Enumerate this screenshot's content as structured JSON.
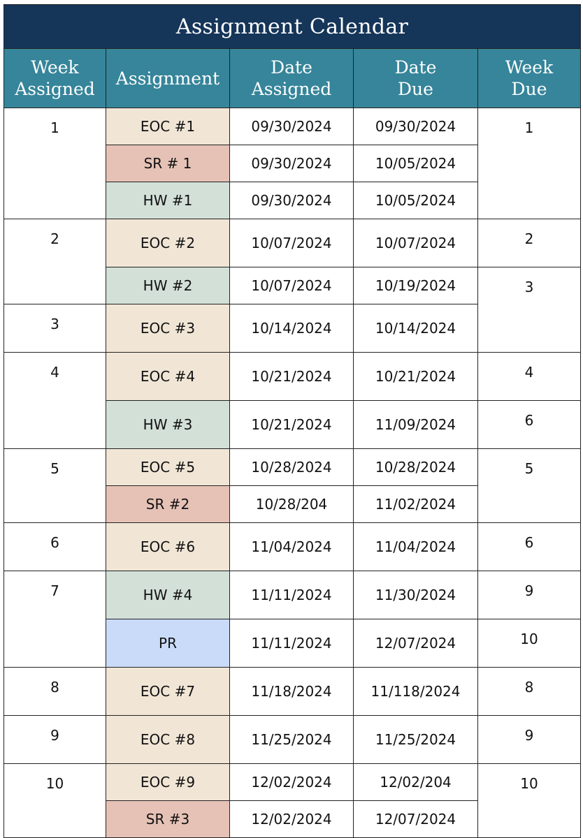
{
  "title": "Assignment Calendar",
  "headers": {
    "week_assigned": [
      "Week",
      "Assigned"
    ],
    "assignment": [
      "Assignment"
    ],
    "date_assigned": [
      "Date",
      "Assigned"
    ],
    "date_due": [
      "Date",
      "Due"
    ],
    "week_due": [
      "Week",
      "Due"
    ]
  },
  "colors": {
    "title_bg": "#153559",
    "header_bg": "#36859a",
    "EOC": "#f1e6d6",
    "SR": "#e6c2b6",
    "HW": "#d3e0d8",
    "PR": "#c9dbf8"
  },
  "rows": [
    {
      "week_assigned": "1",
      "assignment": "EOC #1",
      "type": "EOC",
      "date_assigned": "09/30/2024",
      "date_due": "09/30/2024",
      "week_due": "1"
    },
    {
      "week_assigned": "",
      "assignment": "SR # 1",
      "type": "SR",
      "date_assigned": "09/30/2024",
      "date_due": "10/05/2024",
      "week_due": ""
    },
    {
      "week_assigned": "",
      "assignment": "HW #1",
      "type": "HW",
      "date_assigned": "09/30/2024",
      "date_due": "10/05/2024",
      "week_due": ""
    },
    {
      "week_assigned": "2",
      "assignment": "EOC #2",
      "type": "EOC",
      "date_assigned": "10/07/2024",
      "date_due": "10/07/2024",
      "week_due": "2"
    },
    {
      "week_assigned": "",
      "assignment": "HW #2",
      "type": "HW",
      "date_assigned": "10/07/2024",
      "date_due": "10/19/2024",
      "week_due": "3"
    },
    {
      "week_assigned": "3",
      "assignment": "EOC #3",
      "type": "EOC",
      "date_assigned": "10/14/2024",
      "date_due": "10/14/2024",
      "week_due": ""
    },
    {
      "week_assigned": "4",
      "assignment": "EOC #4",
      "type": "EOC",
      "date_assigned": "10/21/2024",
      "date_due": "10/21/2024",
      "week_due": "4"
    },
    {
      "week_assigned": "",
      "assignment": "HW #3",
      "type": "HW",
      "date_assigned": "10/21/2024",
      "date_due": "11/09/2024",
      "week_due": "6"
    },
    {
      "week_assigned": "5",
      "assignment": "EOC #5",
      "type": "EOC",
      "date_assigned": "10/28/2024",
      "date_due": "10/28/2024",
      "week_due": "5"
    },
    {
      "week_assigned": "",
      "assignment": "SR #2",
      "type": "SR",
      "date_assigned": "10/28/204",
      "date_due": "11/02/2024",
      "week_due": ""
    },
    {
      "week_assigned": "6",
      "assignment": "EOC #6",
      "type": "EOC",
      "date_assigned": "11/04/2024",
      "date_due": "11/04/2024",
      "week_due": "6"
    },
    {
      "week_assigned": "7",
      "assignment": "HW #4",
      "type": "HW",
      "date_assigned": "11/11/2024",
      "date_due": "11/30/2024",
      "week_due": "9"
    },
    {
      "week_assigned": "",
      "assignment": "PR",
      "type": "PR",
      "date_assigned": "11/11/2024",
      "date_due": "12/07/2024",
      "week_due": "10"
    },
    {
      "week_assigned": "8",
      "assignment": "EOC #7",
      "type": "EOC",
      "date_assigned": "11/18/2024",
      "date_due": "11/118/2024",
      "week_due": "8"
    },
    {
      "week_assigned": "9",
      "assignment": "EOC #8",
      "type": "EOC",
      "date_assigned": "11/25/2024",
      "date_due": "11/25/2024",
      "week_due": "9"
    },
    {
      "week_assigned": "10",
      "assignment": "EOC #9",
      "type": "EOC",
      "date_assigned": "12/02/2024",
      "date_due": "12/02/204",
      "week_due": "10"
    },
    {
      "week_assigned": "",
      "assignment": "SR #3",
      "type": "SR",
      "date_assigned": "12/02/2024",
      "date_due": "12/07/2024",
      "week_due": ""
    }
  ]
}
